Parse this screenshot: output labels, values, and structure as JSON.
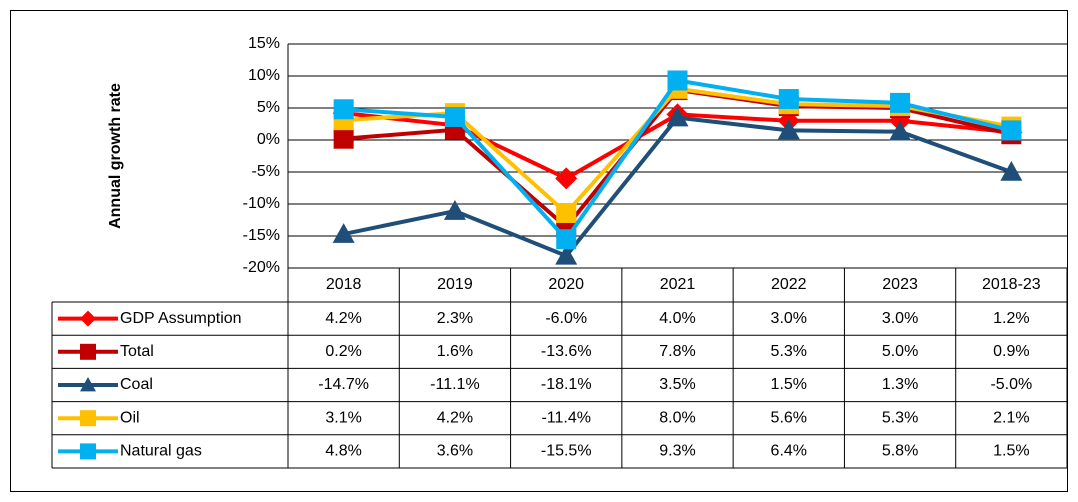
{
  "chart_data": {
    "type": "line",
    "y_label": "Annual growth rate",
    "categories": [
      "2018",
      "2019",
      "2020",
      "2021",
      "2022",
      "2023",
      "2018-23"
    ],
    "ylim": [
      -20,
      15
    ],
    "yticks": [
      {
        "value": -20,
        "label": "-20%"
      },
      {
        "value": -15,
        "label": "-15%"
      },
      {
        "value": -10,
        "label": "-10%"
      },
      {
        "value": -5,
        "label": "-5%"
      },
      {
        "value": 0,
        "label": "0%"
      },
      {
        "value": 5,
        "label": "5%"
      },
      {
        "value": 10,
        "label": "10%"
      },
      {
        "value": 15,
        "label": "15%"
      }
    ],
    "grid": true,
    "series": [
      {
        "name": "GDP Assumption",
        "color": "#ff0000",
        "marker": "diamond",
        "values": [
          4.2,
          2.3,
          -6.0,
          4.0,
          3.0,
          3.0,
          1.2
        ],
        "value_labels": [
          "4.2%",
          "2.3%",
          "-6.0%",
          "4.0%",
          "3.0%",
          "3.0%",
          "1.2%"
        ]
      },
      {
        "name": "Total",
        "color": "#c00000",
        "marker": "square",
        "values": [
          0.2,
          1.6,
          -13.6,
          7.8,
          5.3,
          5.0,
          0.9
        ],
        "value_labels": [
          "0.2%",
          "1.6%",
          "-13.6%",
          "7.8%",
          "5.3%",
          "5.0%",
          "0.9%"
        ]
      },
      {
        "name": "Coal",
        "color": "#1f4e79",
        "marker": "triangle",
        "values": [
          -14.7,
          -11.1,
          -18.1,
          3.5,
          1.5,
          1.3,
          -5.0
        ],
        "value_labels": [
          "-14.7%",
          "-11.1%",
          "-18.1%",
          "3.5%",
          "1.5%",
          "1.3%",
          "-5.0%"
        ]
      },
      {
        "name": "Oil",
        "color": "#ffc000",
        "marker": "square",
        "values": [
          3.1,
          4.2,
          -11.4,
          8.0,
          5.6,
          5.3,
          2.1
        ],
        "value_labels": [
          "3.1%",
          "4.2%",
          "-11.4%",
          "8.0%",
          "5.6%",
          "5.3%",
          "2.1%"
        ]
      },
      {
        "name": "Natural gas",
        "color": "#00b0f0",
        "marker": "square",
        "values": [
          4.8,
          3.6,
          -15.5,
          9.3,
          6.4,
          5.8,
          1.5
        ],
        "value_labels": [
          "4.8%",
          "3.6%",
          "-15.5%",
          "9.3%",
          "6.4%",
          "5.8%",
          "1.5%"
        ]
      }
    ]
  }
}
